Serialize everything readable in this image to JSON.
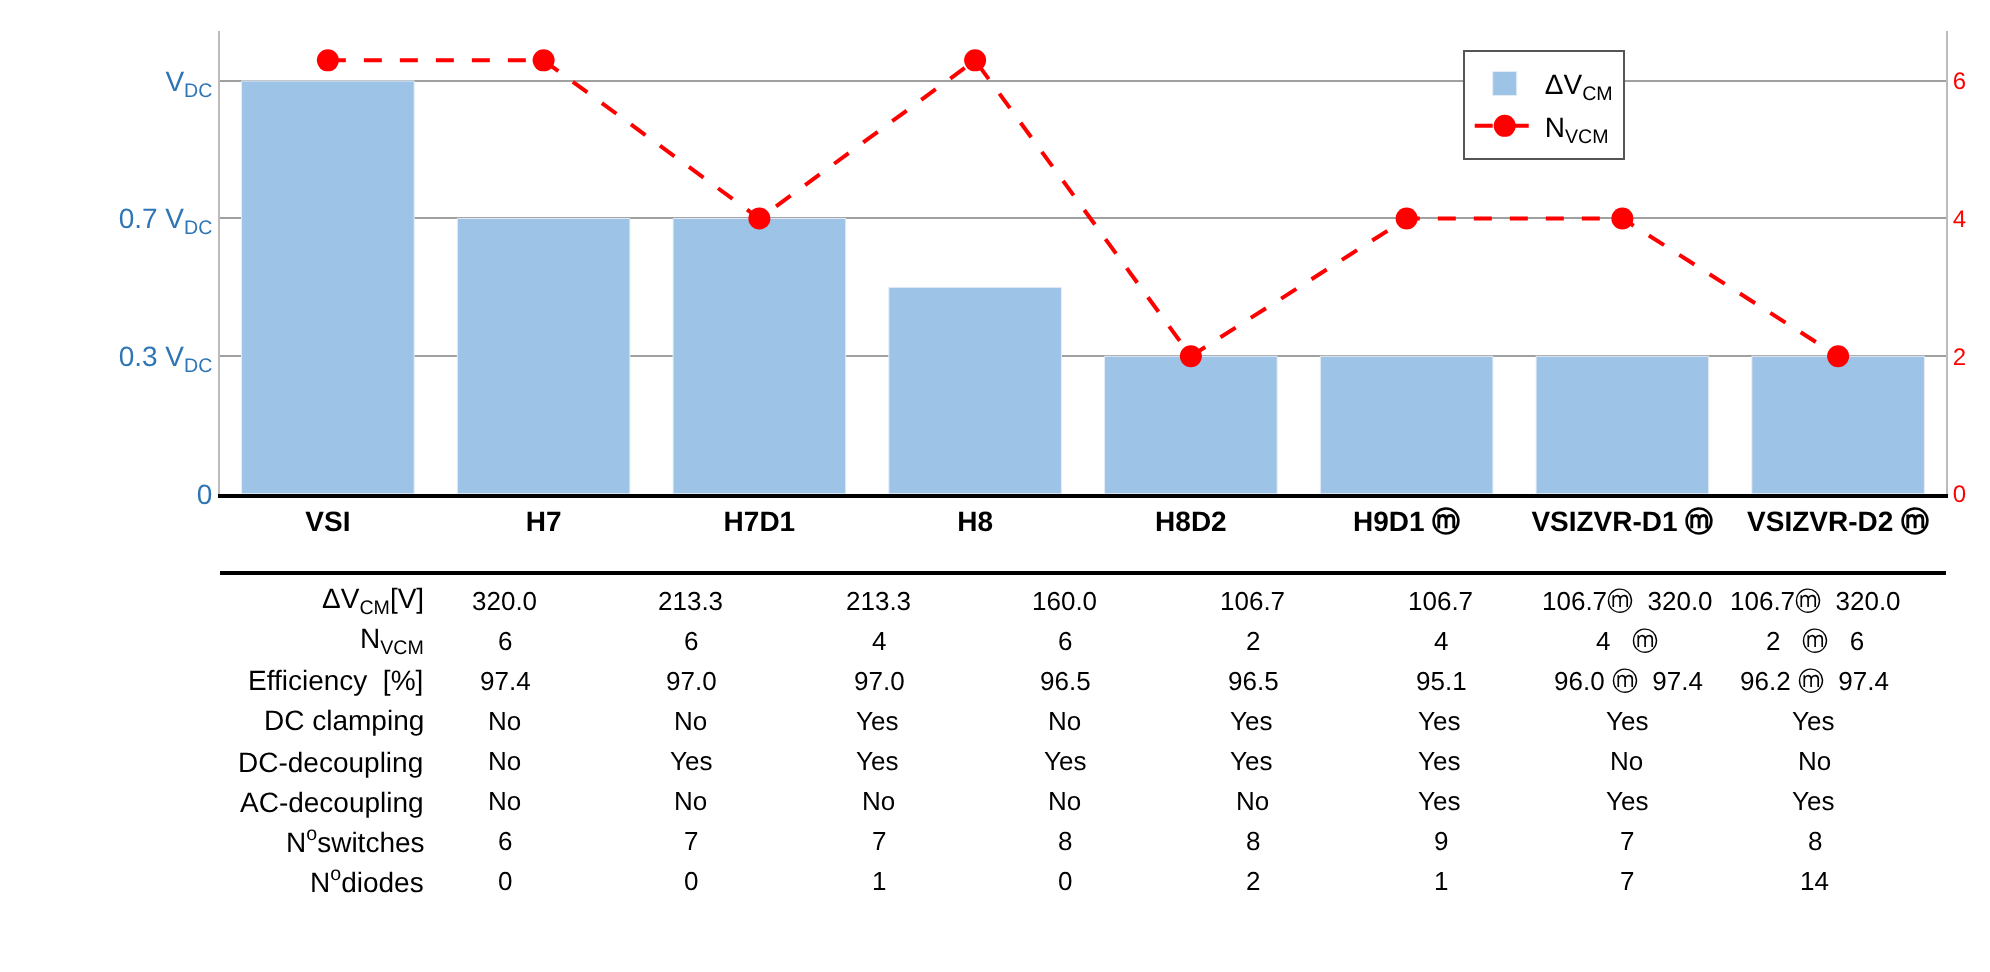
{
  "chart_data": {
    "type": "bar",
    "categories": [
      "VSI",
      "H7",
      "H7D1",
      "H8",
      "H8D2",
      "H9D1 ⓜ",
      "VSIZVR-D1 ⓜ",
      "VSIZVR-D2 ⓜ"
    ],
    "series": [
      {
        "name": "ΔV$_{CM}$",
        "color": "#9dc3e6",
        "values": [
          1,
          0.667,
          0.667,
          0.5,
          0.333,
          0.333,
          0.333,
          0.333
        ]
      },
      {
        "name": "N$_{VCM}$",
        "type": "line",
        "axis": "y2",
        "color": "#ff0000",
        "marker": "circle",
        "line_style": "dashed",
        "values": [
          6.3,
          6.3,
          4,
          6.3,
          2,
          4,
          4,
          2
        ]
      }
    ],
    "ylim": [
      0,
      1.12
    ],
    "yticks": [
      0,
      {
        "value": 0.333,
        "label": "0.3 V$_{DC}$"
      },
      {
        "value": 0.667,
        "label": "0.7 V$_{DC}$"
      },
      {
        "value": 1,
        "label": "V$_{DC}$"
      }
    ],
    "y2lim": [
      0,
      6.72
    ],
    "y2ticks": [
      0,
      2,
      4,
      6
    ],
    "grid": "y",
    "legend": "top right",
    "annotations": [
      "ΔV$_{CM}$[V]",
      "320.0",
      "213.3",
      "213.3",
      "160.0",
      "106.7",
      "106.7",
      "106.7ⓜ  320.0",
      "106.7ⓜ  320.0",
      "N$_{VCM}$",
      "6",
      "6",
      "4",
      "6",
      "2",
      "4",
      "4   ⓜ",
      "2   ⓜ   6",
      "Efficiency  [%]",
      "97.4",
      "97.0",
      "97.0",
      "96.5",
      "96.5",
      "95.1",
      "96.0 ⓜ  97.4",
      "96.2 ⓜ  97.4",
      "DC clamping",
      "No",
      "No",
      "Yes",
      "No",
      "Yes",
      "Yes",
      "Yes",
      "Yes",
      "DC-decoupling",
      "No",
      "Yes",
      "Yes",
      "Yes",
      "Yes",
      "Yes",
      "No",
      "No",
      "AC-decoupling",
      "No",
      "No",
      "No",
      "No",
      "No",
      "Yes",
      "Yes",
      "Yes",
      "N$^{o}$switches",
      "6",
      "7",
      "7",
      "8",
      "8",
      "9",
      "7",
      "8",
      "N$^{o}$diodes",
      "0",
      "0",
      "1",
      "0",
      "2",
      "1",
      "7",
      "14"
    ]
  }
}
